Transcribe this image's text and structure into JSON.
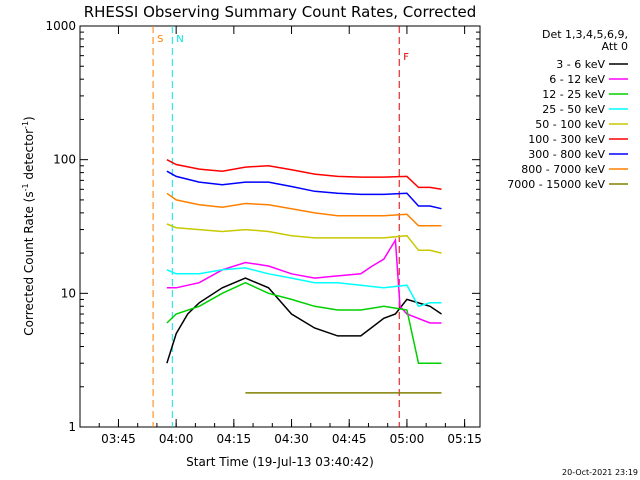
{
  "chart_data": {
    "type": "line",
    "title": "RHESSI Observing Summary Count Rates, Corrected",
    "xlabel": "Start Time (19-Jul-13 03:40:42)",
    "ylabel_main": "Corrected Count Rate (s",
    "ylabel_sup1": "-1",
    "ylabel_mid": " detector",
    "ylabel_sup2": "-1",
    "ylabel_end": ")",
    "y_scale": "log",
    "ylim": [
      1,
      1000
    ],
    "x_range_minutes": [
      "03:35",
      "05:19"
    ],
    "x_ticks": [
      "03:45",
      "04:00",
      "04:15",
      "04:30",
      "04:45",
      "05:00",
      "05:15"
    ],
    "y_ticks": [
      "1",
      "10",
      "100",
      "1000"
    ],
    "legend_placement": "right",
    "legend_header": [
      "Det 1,3,4,5,6,9,",
      "Att 0"
    ],
    "timestamp": "20-Oct-2021 23:19",
    "markers": [
      {
        "label": "S",
        "time": "03:54",
        "color": "#ff8000"
      },
      {
        "label": "N",
        "time": "03:59",
        "color": "#00e5e5"
      },
      {
        "label": "F",
        "time": "04:58",
        "color": "#e00000"
      }
    ],
    "series": [
      {
        "name": "3 - 6 keV",
        "color": "#000000",
        "values": [
          [
            3.96,
            3
          ],
          [
            4.0,
            5
          ],
          [
            4.05,
            7
          ],
          [
            4.1,
            8.5
          ],
          [
            4.2,
            11
          ],
          [
            4.3,
            13
          ],
          [
            4.4,
            11
          ],
          [
            4.5,
            7
          ],
          [
            4.6,
            5.5
          ],
          [
            4.7,
            4.8
          ],
          [
            4.8,
            4.8
          ],
          [
            4.9,
            6.5
          ],
          [
            4.95,
            7
          ],
          [
            5.0,
            9
          ],
          [
            5.1,
            8
          ],
          [
            5.15,
            7
          ]
        ]
      },
      {
        "name": "6 - 12 keV",
        "color": "#ff00ff",
        "values": [
          [
            3.96,
            11
          ],
          [
            4.0,
            11
          ],
          [
            4.1,
            12
          ],
          [
            4.2,
            15
          ],
          [
            4.3,
            17
          ],
          [
            4.4,
            16
          ],
          [
            4.5,
            14
          ],
          [
            4.6,
            13
          ],
          [
            4.7,
            13.5
          ],
          [
            4.8,
            14
          ],
          [
            4.85,
            16
          ],
          [
            4.9,
            18
          ],
          [
            4.95,
            25
          ],
          [
            4.97,
            8
          ],
          [
            5.0,
            7
          ],
          [
            5.1,
            6
          ],
          [
            5.15,
            6
          ]
        ]
      },
      {
        "name": "12 - 25 keV",
        "color": "#00d000",
        "values": [
          [
            3.96,
            6
          ],
          [
            4.0,
            7
          ],
          [
            4.1,
            8
          ],
          [
            4.2,
            10
          ],
          [
            4.3,
            12
          ],
          [
            4.4,
            10
          ],
          [
            4.5,
            9
          ],
          [
            4.6,
            8
          ],
          [
            4.7,
            7.5
          ],
          [
            4.8,
            7.5
          ],
          [
            4.9,
            8
          ],
          [
            5.0,
            7.5
          ],
          [
            5.05,
            3
          ],
          [
            5.1,
            3
          ],
          [
            5.15,
            3
          ]
        ]
      },
      {
        "name": "25 - 50 keV",
        "color": "#00ffff",
        "values": [
          [
            3.96,
            15
          ],
          [
            4.0,
            14
          ],
          [
            4.1,
            14
          ],
          [
            4.2,
            15
          ],
          [
            4.3,
            15.5
          ],
          [
            4.4,
            14
          ],
          [
            4.5,
            13
          ],
          [
            4.6,
            12
          ],
          [
            4.7,
            12
          ],
          [
            4.8,
            11.5
          ],
          [
            4.9,
            11
          ],
          [
            5.0,
            11.5
          ],
          [
            5.05,
            8
          ],
          [
            5.1,
            8.5
          ],
          [
            5.15,
            8.5
          ]
        ]
      },
      {
        "name": "50 - 100 keV",
        "color": "#c8c800",
        "values": [
          [
            3.96,
            33
          ],
          [
            4.0,
            31
          ],
          [
            4.1,
            30
          ],
          [
            4.2,
            29
          ],
          [
            4.3,
            30
          ],
          [
            4.4,
            29
          ],
          [
            4.5,
            27
          ],
          [
            4.6,
            26
          ],
          [
            4.7,
            26
          ],
          [
            4.8,
            26
          ],
          [
            4.9,
            26
          ],
          [
            5.0,
            27
          ],
          [
            5.05,
            21
          ],
          [
            5.1,
            21
          ],
          [
            5.15,
            20
          ]
        ]
      },
      {
        "name": "100 - 300 keV",
        "color": "#ff0000",
        "values": [
          [
            3.96,
            100
          ],
          [
            4.0,
            92
          ],
          [
            4.1,
            85
          ],
          [
            4.2,
            82
          ],
          [
            4.3,
            88
          ],
          [
            4.4,
            90
          ],
          [
            4.5,
            84
          ],
          [
            4.6,
            78
          ],
          [
            4.7,
            75
          ],
          [
            4.8,
            74
          ],
          [
            4.9,
            74
          ],
          [
            5.0,
            75
          ],
          [
            5.05,
            62
          ],
          [
            5.1,
            62
          ],
          [
            5.15,
            60
          ]
        ]
      },
      {
        "name": "300 - 800 keV",
        "color": "#0000ff",
        "values": [
          [
            3.96,
            82
          ],
          [
            4.0,
            75
          ],
          [
            4.1,
            68
          ],
          [
            4.2,
            65
          ],
          [
            4.3,
            68
          ],
          [
            4.4,
            68
          ],
          [
            4.5,
            63
          ],
          [
            4.6,
            58
          ],
          [
            4.7,
            56
          ],
          [
            4.8,
            55
          ],
          [
            4.9,
            55
          ],
          [
            5.0,
            56
          ],
          [
            5.05,
            45
          ],
          [
            5.1,
            45
          ],
          [
            5.15,
            43
          ]
        ]
      },
      {
        "name": "800 - 7000 keV",
        "color": "#ff8000",
        "values": [
          [
            3.96,
            56
          ],
          [
            4.0,
            50
          ],
          [
            4.1,
            46
          ],
          [
            4.2,
            44
          ],
          [
            4.3,
            47
          ],
          [
            4.4,
            46
          ],
          [
            4.5,
            43
          ],
          [
            4.6,
            40
          ],
          [
            4.7,
            38
          ],
          [
            4.8,
            38
          ],
          [
            4.9,
            38
          ],
          [
            5.0,
            39
          ],
          [
            5.05,
            32
          ],
          [
            5.1,
            32
          ],
          [
            5.15,
            32
          ]
        ]
      },
      {
        "name": "7000 - 15000 keV",
        "color": "#808000",
        "values": [
          [
            4.3,
            1.8
          ],
          [
            4.5,
            1.8
          ],
          [
            5.0,
            1.8
          ],
          [
            5.15,
            1.8
          ]
        ]
      }
    ]
  }
}
